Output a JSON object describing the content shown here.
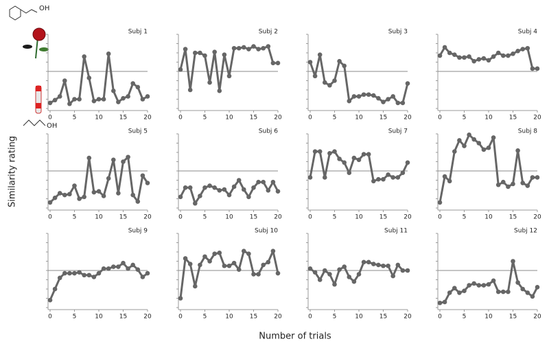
{
  "ylabel": "Similarity rating",
  "xlabel": "Number of trials",
  "icon_labels": [
    "OH",
    "OH"
  ],
  "chart_data": [
    {
      "type": "line",
      "title": "Subj 1",
      "x": [
        0,
        1,
        2,
        3,
        4,
        5,
        6,
        7,
        8,
        9,
        10,
        11,
        12,
        13,
        14,
        15,
        16,
        17,
        18,
        19,
        20
      ],
      "values": [
        0.6,
        0.9,
        1.3,
        3.0,
        0.5,
        1.0,
        1.0,
        5.6,
        3.3,
        0.8,
        1.0,
        1.0,
        5.9,
        1.9,
        0.7,
        1.1,
        1.3,
        2.7,
        2.3,
        1.0,
        1.3
      ],
      "color": "#666666",
      "refline": 4,
      "xlim": [
        0,
        20
      ],
      "xticks": [
        0,
        5,
        10,
        15,
        20
      ],
      "ylim": [
        0,
        8
      ],
      "yticks": [
        0,
        1,
        2,
        3,
        4,
        5,
        6,
        7,
        8
      ]
    },
    {
      "type": "line",
      "title": "Subj 2",
      "x": [
        0,
        1,
        2,
        3,
        4,
        5,
        6,
        7,
        8,
        9,
        10,
        11,
        12,
        13,
        14,
        15,
        16,
        17,
        18,
        19,
        20
      ],
      "values": [
        4.2,
        6.4,
        2.0,
        6.0,
        6.0,
        5.7,
        2.8,
        6.1,
        1.9,
        5.8,
        3.5,
        6.5,
        6.5,
        6.6,
        6.4,
        6.7,
        6.4,
        6.5,
        6.7,
        4.9,
        4.9
      ],
      "color": "#666666",
      "refline": 4,
      "xlim": [
        0,
        20
      ],
      "xticks": [
        0,
        5,
        10,
        15,
        20
      ],
      "ylim": [
        0,
        8
      ],
      "yticks": [
        0,
        1,
        2,
        3,
        4,
        5,
        6,
        7,
        8
      ]
    },
    {
      "type": "line",
      "title": "Subj 3",
      "x": [
        0,
        1,
        2,
        3,
        4,
        5,
        6,
        7,
        8,
        9,
        10,
        11,
        12,
        13,
        14,
        15,
        16,
        17,
        18,
        19,
        20
      ],
      "values": [
        5.0,
        3.5,
        5.8,
        2.8,
        2.5,
        3.0,
        5.1,
        4.6,
        0.8,
        1.3,
        1.3,
        1.5,
        1.5,
        1.4,
        1.1,
        0.7,
        1.0,
        1.3,
        0.6,
        0.6,
        2.7
      ],
      "color": "#666666",
      "refline": 4,
      "xlim": [
        0,
        20
      ],
      "xticks": [
        0,
        5,
        10,
        15,
        20
      ],
      "ylim": [
        0,
        8
      ],
      "yticks": [
        0,
        1,
        2,
        3,
        4,
        5,
        6,
        7,
        8
      ]
    },
    {
      "type": "line",
      "title": "Subj 4",
      "x": [
        0,
        1,
        2,
        3,
        4,
        5,
        6,
        7,
        8,
        9,
        10,
        11,
        12,
        13,
        14,
        15,
        16,
        17,
        18,
        19,
        20
      ],
      "values": [
        5.7,
        6.6,
        6.0,
        5.8,
        5.5,
        5.5,
        5.6,
        5.1,
        5.3,
        5.4,
        5.2,
        5.6,
        6.0,
        5.7,
        5.7,
        5.9,
        6.2,
        6.4,
        6.5,
        4.3,
        4.3
      ],
      "color": "#666666",
      "refline": 4,
      "xlim": [
        0,
        20
      ],
      "xticks": [
        0,
        5,
        10,
        15,
        20
      ],
      "ylim": [
        0,
        8
      ],
      "yticks": [
        0,
        1,
        2,
        3,
        4,
        5,
        6,
        7,
        8
      ]
    },
    {
      "type": "line",
      "title": "Subj 5",
      "x": [
        0,
        1,
        2,
        3,
        4,
        5,
        6,
        7,
        8,
        9,
        10,
        11,
        12,
        13,
        14,
        15,
        16,
        17,
        18,
        19,
        20
      ],
      "values": [
        0.6,
        1.1,
        1.6,
        1.4,
        1.5,
        2.4,
        1.0,
        1.2,
        5.4,
        1.7,
        1.8,
        1.3,
        3.2,
        5.2,
        1.6,
        5.0,
        5.5,
        1.4,
        0.7,
        3.5,
        2.7
      ],
      "color": "#666666",
      "refline": 4,
      "xlim": [
        0,
        20
      ],
      "xticks": [
        0,
        5,
        10,
        15,
        20
      ],
      "ylim": [
        0,
        8
      ],
      "yticks": [
        0,
        1,
        2,
        3,
        4,
        5,
        6,
        7,
        8
      ]
    },
    {
      "type": "line",
      "title": "Subj 6",
      "x": [
        0,
        1,
        2,
        3,
        4,
        5,
        6,
        7,
        8,
        9,
        10,
        11,
        12,
        13,
        14,
        15,
        16,
        17,
        18,
        19,
        20
      ],
      "values": [
        1.2,
        2.2,
        2.2,
        0.5,
        1.3,
        2.2,
        2.4,
        2.2,
        1.9,
        2.0,
        1.4,
        2.3,
        3.0,
        2.0,
        1.2,
        2.2,
        2.8,
        2.8,
        1.9,
        2.8,
        1.8
      ],
      "color": "#666666",
      "refline": 4,
      "xlim": [
        0,
        20
      ],
      "xticks": [
        0,
        5,
        10,
        15,
        20
      ],
      "ylim": [
        0,
        8
      ],
      "yticks": [
        0,
        1,
        2,
        3,
        4,
        5,
        6,
        7,
        8
      ]
    },
    {
      "type": "line",
      "title": "Subj 7",
      "x": [
        0,
        1,
        2,
        3,
        4,
        5,
        6,
        7,
        8,
        9,
        10,
        11,
        12,
        13,
        14,
        15,
        16,
        17,
        18,
        19,
        20
      ],
      "values": [
        3.3,
        6.1,
        6.1,
        3.3,
        5.9,
        6.1,
        5.3,
        4.9,
        3.8,
        5.4,
        5.2,
        5.8,
        5.8,
        2.9,
        3.1,
        3.1,
        3.6,
        3.3,
        3.3,
        3.8,
        4.9
      ],
      "color": "#666666",
      "refline": 4,
      "xlim": [
        0,
        20
      ],
      "xticks": [
        0,
        5,
        10,
        15,
        20
      ],
      "ylim": [
        0,
        8
      ],
      "yticks": [
        0,
        1,
        2,
        3,
        4,
        5,
        6,
        7,
        8
      ]
    },
    {
      "type": "line",
      "title": "Subj 8",
      "x": [
        0,
        1,
        2,
        3,
        4,
        5,
        6,
        7,
        8,
        9,
        10,
        11,
        12,
        13,
        14,
        15,
        16,
        17,
        18,
        19,
        20
      ],
      "values": [
        0.6,
        3.4,
        2.9,
        6.1,
        7.3,
        6.7,
        7.9,
        7.4,
        7.0,
        6.3,
        6.5,
        7.6,
        2.5,
        2.8,
        2.3,
        2.6,
        6.2,
        2.7,
        2.4,
        3.3,
        3.3
      ],
      "color": "#666666",
      "refline": 4,
      "xlim": [
        0,
        20
      ],
      "xticks": [
        0,
        5,
        10,
        15,
        20
      ],
      "ylim": [
        0,
        8
      ],
      "yticks": [
        0,
        1,
        2,
        3,
        4,
        5,
        6,
        7,
        8
      ]
    },
    {
      "type": "line",
      "title": "Subj 9",
      "x": [
        0,
        1,
        2,
        3,
        4,
        5,
        6,
        7,
        8,
        9,
        10,
        11,
        12,
        13,
        14,
        15,
        16,
        17,
        18,
        19,
        20
      ],
      "values": [
        0.8,
        2.0,
        3.2,
        3.7,
        3.7,
        3.7,
        3.8,
        3.5,
        3.5,
        3.3,
        3.7,
        4.2,
        4.2,
        4.4,
        4.4,
        4.8,
        4.2,
        4.6,
        4.1,
        3.3,
        3.7
      ],
      "color": "#666666",
      "refline": 4,
      "xlim": [
        0,
        20
      ],
      "xticks": [
        0,
        5,
        10,
        15,
        20
      ],
      "ylim": [
        0,
        8
      ],
      "yticks": [
        0,
        1,
        2,
        3,
        4,
        5,
        6,
        7,
        8
      ]
    },
    {
      "type": "line",
      "title": "Subj 10",
      "x": [
        0,
        1,
        2,
        3,
        4,
        5,
        6,
        7,
        8,
        9,
        10,
        11,
        12,
        13,
        14,
        15,
        16,
        17,
        18,
        19,
        20
      ],
      "values": [
        1.0,
        5.3,
        4.7,
        2.3,
        4.6,
        5.5,
        5.0,
        5.8,
        5.9,
        4.5,
        4.5,
        4.8,
        4.1,
        6.1,
        5.8,
        3.6,
        3.6,
        4.6,
        4.9,
        6.1,
        3.7
      ],
      "color": "#666666",
      "refline": 4,
      "xlim": [
        0,
        20
      ],
      "xticks": [
        0,
        5,
        10,
        15,
        20
      ],
      "ylim": [
        0,
        8
      ],
      "yticks": [
        0,
        1,
        2,
        3,
        4,
        5,
        6,
        7,
        8
      ]
    },
    {
      "type": "line",
      "title": "Subj 11",
      "x": [
        0,
        1,
        2,
        3,
        4,
        5,
        6,
        7,
        8,
        9,
        10,
        11,
        12,
        13,
        14,
        15,
        16,
        17,
        18,
        19,
        20
      ],
      "values": [
        4.2,
        3.8,
        3.0,
        4.0,
        3.6,
        2.5,
        4.1,
        4.4,
        3.3,
        2.8,
        3.6,
        4.9,
        4.9,
        4.7,
        4.6,
        4.5,
        4.5,
        3.4,
        4.6,
        4.0,
        4.0
      ],
      "color": "#666666",
      "refline": 4,
      "xlim": [
        0,
        20
      ],
      "xticks": [
        0,
        5,
        10,
        15,
        20
      ],
      "ylim": [
        0,
        8
      ],
      "yticks": [
        0,
        1,
        2,
        3,
        4,
        5,
        6,
        7,
        8
      ]
    },
    {
      "type": "line",
      "title": "Subj 12",
      "x": [
        0,
        1,
        2,
        3,
        4,
        5,
        6,
        7,
        8,
        9,
        10,
        11,
        12,
        13,
        14,
        15,
        16,
        17,
        18,
        19,
        20
      ],
      "values": [
        0.5,
        0.6,
        1.6,
        2.1,
        1.6,
        1.8,
        2.4,
        2.6,
        2.4,
        2.4,
        2.5,
        2.9,
        1.7,
        1.7,
        1.7,
        5.0,
        2.7,
        2.0,
        1.6,
        1.2,
        2.2
      ],
      "color": "#666666",
      "refline": 4,
      "xlim": [
        0,
        20
      ],
      "xticks": [
        0,
        5,
        10,
        15,
        20
      ],
      "ylim": [
        0,
        8
      ],
      "yticks": [
        0,
        1,
        2,
        3,
        4,
        5,
        6,
        7,
        8
      ]
    }
  ]
}
